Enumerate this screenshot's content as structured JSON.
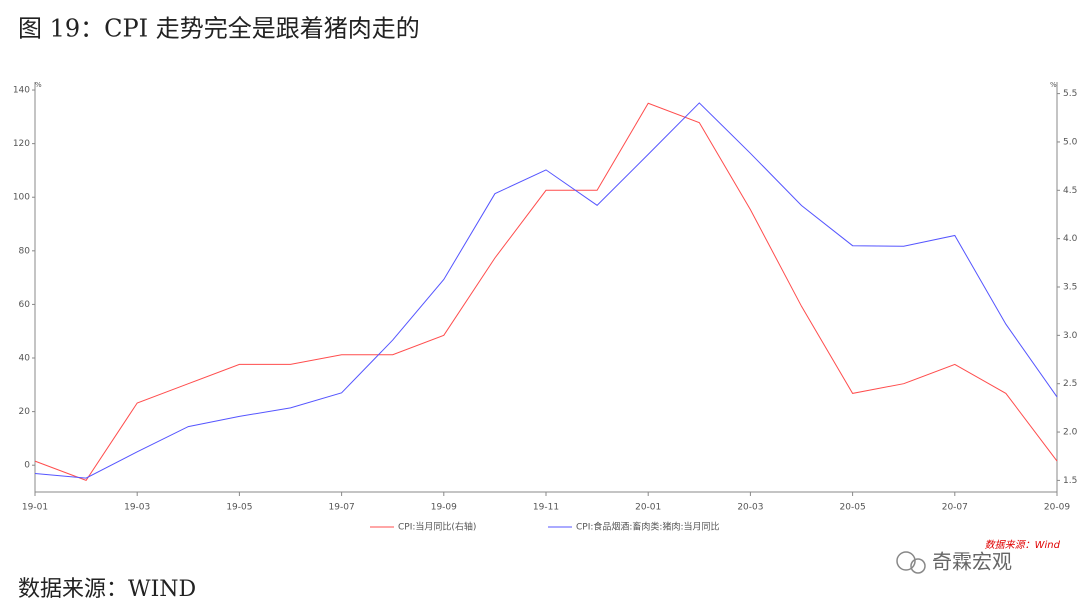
{
  "title": "图 19：CPI 走势完全是跟着猪肉走的",
  "chart_data": {
    "type": "line",
    "y_unit": "%",
    "y2_unit": "%",
    "categories": [
      "19-01",
      null,
      "19-03",
      null,
      "19-05",
      null,
      "19-07",
      null,
      "19-09",
      null,
      "19-11",
      null,
      "20-01",
      null,
      "20-03",
      null,
      "20-05",
      null,
      "20-07",
      null,
      "20-09"
    ],
    "series": [
      {
        "name": "CPI:当月同比(右轴)",
        "color": "#ff4d4d",
        "axis": "y2",
        "values": [
          1.7,
          1.5,
          2.3,
          2.5,
          2.7,
          2.7,
          2.8,
          2.8,
          3.0,
          3.8,
          4.5,
          4.5,
          5.4,
          5.2,
          4.3,
          3.3,
          2.4,
          2.5,
          2.7,
          2.4,
          1.7
        ]
      },
      {
        "name": "CPI:食品烟酒:畜肉类:猪肉:当月同比",
        "color": "#5555ff",
        "values": [
          -3.1,
          -4.8,
          5.0,
          14.4,
          18.2,
          21.4,
          27.0,
          46.7,
          69.3,
          101.3,
          110.2,
          97.0,
          116.0,
          135.2,
          116.4,
          96.9,
          81.9,
          81.7,
          85.7,
          52.6,
          25.5
        ]
      }
    ],
    "ylim": [
      -10,
      143
    ],
    "yticks": [
      0,
      20,
      40,
      60,
      80,
      100,
      120,
      140
    ],
    "y2lim": [
      1.38,
      5.62
    ],
    "y2ticks": [
      1.5,
      {
        "value": 2,
        "label": "2.0"
      },
      2.5,
      {
        "value": 3,
        "label": "3.0"
      },
      3.5,
      {
        "value": 4,
        "label": "4.0"
      },
      4.5,
      {
        "value": 5,
        "label": "5.0"
      },
      5.5
    ]
  },
  "watermark": "数据来源：Wind",
  "logo": "奇霖宏观",
  "source": "数据来源：WIND"
}
